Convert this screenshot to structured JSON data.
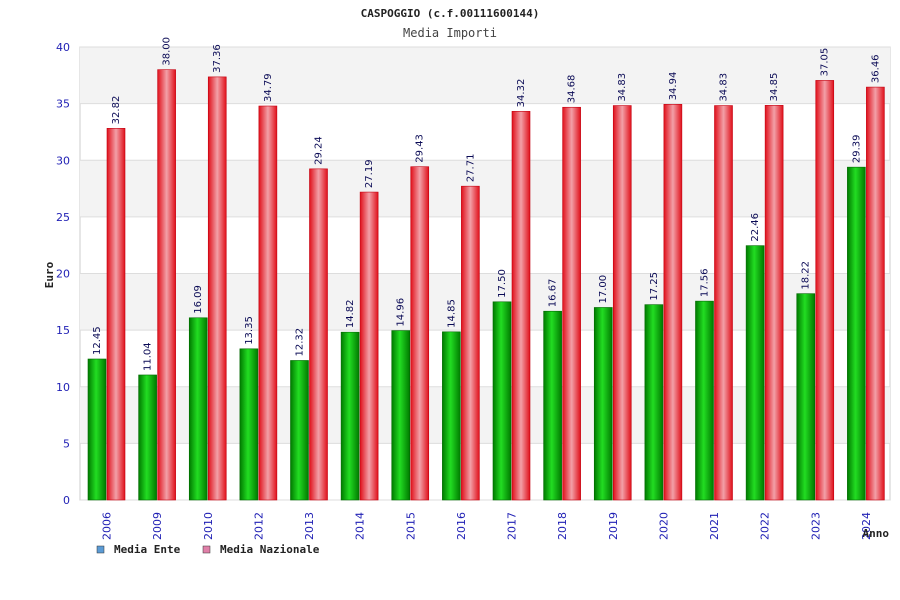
{
  "chart_data": {
    "type": "bar",
    "title": "CASPOGGIO (c.f.00111600144)",
    "subtitle": "Media Importi",
    "xlabel": "Anno",
    "ylabel": "Euro",
    "ylim": [
      0,
      40
    ],
    "yticks": [
      0,
      5,
      10,
      15,
      20,
      25,
      30,
      35,
      40
    ],
    "grid": true,
    "legend_position": "bottom-left",
    "categories": [
      "2006",
      "2009",
      "2010",
      "2012",
      "2013",
      "2014",
      "2015",
      "2016",
      "2017",
      "2018",
      "2019",
      "2020",
      "2021",
      "2022",
      "2023",
      "2024"
    ],
    "series": [
      {
        "name": "Media Ente",
        "color": "#00b400",
        "legend_color": "#5b9bd5",
        "values": [
          12.45,
          11.04,
          16.09,
          13.35,
          12.32,
          14.82,
          14.96,
          14.85,
          17.5,
          16.67,
          17.0,
          17.25,
          17.56,
          22.46,
          18.22,
          29.39
        ],
        "labels": [
          "12.45",
          "11.04",
          "16.09",
          "13.35",
          "12.32",
          "14.82",
          "14.96",
          "14.85",
          "17.50",
          "16.67",
          "17.00",
          "17.25",
          "17.56",
          "22.46",
          "18.22",
          "29.39"
        ]
      },
      {
        "name": "Media Nazionale",
        "color": "#e8141e",
        "legend_color": "#e07fa8",
        "values": [
          32.82,
          38.0,
          37.36,
          34.79,
          29.24,
          27.19,
          29.43,
          27.71,
          34.32,
          34.68,
          34.83,
          34.94,
          34.83,
          34.85,
          37.05,
          36.46
        ],
        "labels": [
          "32.82",
          "38.00",
          "37.36",
          "34.79",
          "29.24",
          "27.19",
          "29.43",
          "27.71",
          "34.32",
          "34.68",
          "34.83",
          "34.94",
          "34.83",
          "34.85",
          "37.05",
          "36.46"
        ]
      }
    ]
  }
}
